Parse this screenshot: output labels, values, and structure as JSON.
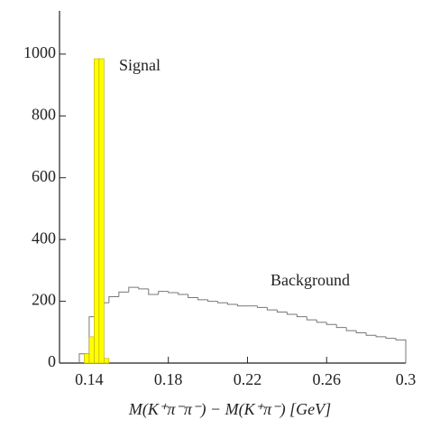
{
  "chart_data": {
    "type": "histogram",
    "xlabel": "M(K⁺π⁻π⁻) − M(K⁺π⁻)   [GeV]",
    "xlim": [
      0.125,
      0.3
    ],
    "xticks": [
      0.14,
      0.18,
      0.22,
      0.26,
      0.3
    ],
    "ylim": [
      0,
      1140
    ],
    "yticks": [
      0,
      200,
      400,
      600,
      800,
      1000
    ],
    "series": [
      {
        "name": "Background",
        "color": "#777777",
        "fill": false,
        "bins": [
          0.135,
          0.14,
          0.145,
          0.15,
          0.155,
          0.16,
          0.165,
          0.17,
          0.175,
          0.18,
          0.185,
          0.19,
          0.195,
          0.2,
          0.205,
          0.21,
          0.215,
          0.22,
          0.225,
          0.23,
          0.235,
          0.24,
          0.245,
          0.25,
          0.255,
          0.26,
          0.265,
          0.27,
          0.275,
          0.28,
          0.285,
          0.29,
          0.295,
          0.3
        ],
        "values": [
          30,
          150,
          195,
          215,
          230,
          245,
          240,
          222,
          232,
          228,
          222,
          212,
          205,
          200,
          195,
          190,
          185,
          185,
          180,
          172,
          165,
          158,
          150,
          140,
          132,
          125,
          115,
          105,
          98,
          90,
          85,
          80,
          75
        ]
      },
      {
        "name": "Signal",
        "color": "#ffff00",
        "fill": true,
        "bins": [
          0.1375,
          0.14,
          0.1425,
          0.145,
          0.1475,
          0.15
        ],
        "values": [
          30,
          85,
          985,
          985,
          15
        ]
      }
    ]
  }
}
